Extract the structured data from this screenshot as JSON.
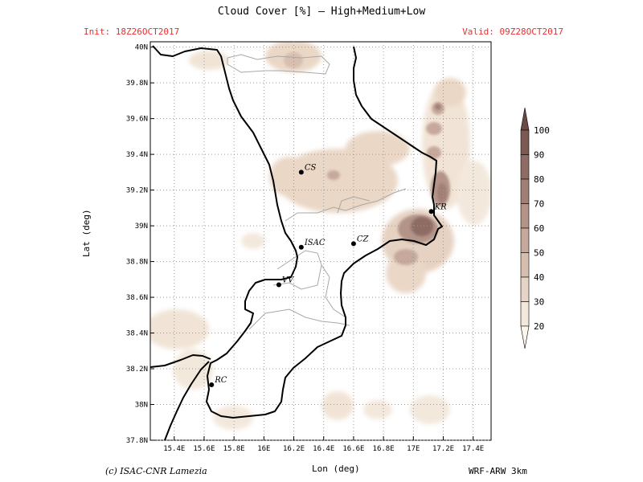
{
  "header": {
    "title": "Cloud Cover [%] — High+Medium+Low",
    "init": "Init: 18Z26OCT2017",
    "valid": "Valid: 09Z28OCT2017"
  },
  "footer": {
    "credit": "(c) ISAC-CNR Lamezia",
    "model": "WRF-ARW 3km"
  },
  "axes": {
    "xlabel": "Lon (deg)",
    "ylabel": "Lat (deg)",
    "xticks": [
      "15.4E",
      "15.6E",
      "15.8E",
      "16E",
      "16.2E",
      "16.4E",
      "16.6E",
      "16.8E",
      "17E",
      "17.2E",
      "17.4E"
    ],
    "yticks": [
      "37.8N",
      "38N",
      "38.2N",
      "38.4N",
      "38.6N",
      "38.8N",
      "39N",
      "39.2N",
      "39.4N",
      "39.6N",
      "39.8N",
      "40N"
    ]
  },
  "cities": [
    {
      "name": "CS",
      "lon": 16.25,
      "lat": 39.3
    },
    {
      "name": "ISAC",
      "lon": 16.25,
      "lat": 38.88,
      "highlight": true
    },
    {
      "name": "CZ",
      "lon": 16.6,
      "lat": 38.9
    },
    {
      "name": "KR",
      "lon": 17.12,
      "lat": 39.08
    },
    {
      "name": "VV",
      "lon": 16.1,
      "lat": 38.67
    },
    {
      "name": "RC",
      "lon": 15.65,
      "lat": 38.11
    }
  ],
  "colorbar": {
    "levels": [
      "100",
      "90",
      "80",
      "70",
      "60",
      "50",
      "40",
      "30",
      "20"
    ],
    "colors": [
      "#7c5a52",
      "#8e6c63",
      "#a07f75",
      "#b49489",
      "#c6a99c",
      "#d7bfb0",
      "#e6d5c7",
      "#f3e8dc",
      "#fbf5ee"
    ],
    "top_color": "#6b4a43"
  },
  "colors": {
    "title_red": "#e83030",
    "coast": "#000000",
    "border": "#b0b0b0"
  },
  "map": {
    "lon_range": [
      15.24,
      17.52
    ],
    "lat_range": [
      37.8,
      40.03
    ]
  }
}
